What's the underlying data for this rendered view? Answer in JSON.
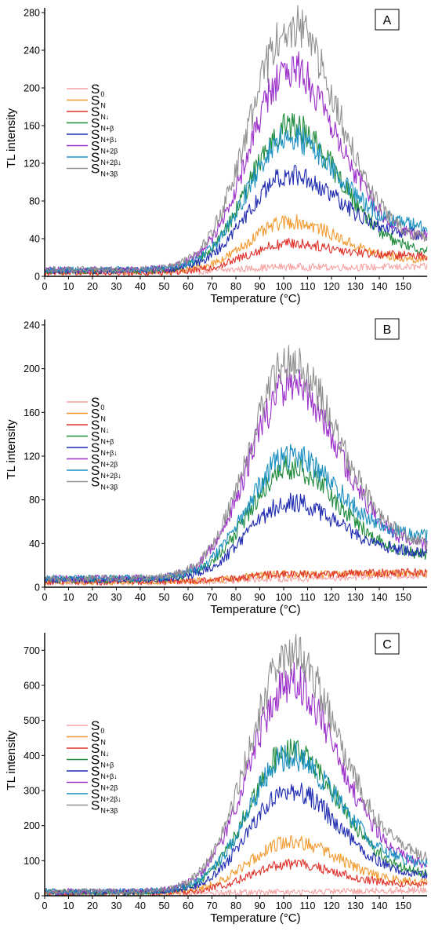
{
  "figure": {
    "series_colors": {
      "S0": "#f5a3a3",
      "SN": "#f29a2e",
      "SN↓": "#e0322b",
      "SN+β": "#1c8a3a",
      "SN+β↓": "#1f2bb0",
      "SN+2β": "#9b2fc9",
      "SN+2β↓": "#1a8fc0",
      "SN+3β": "#8f8f8f"
    }
  },
  "chart_data": [
    {
      "type": "line",
      "panel_label": "A",
      "xlabel": "Temperature (°C)",
      "ylabel": "TL intensity",
      "xlim": [
        0,
        160
      ],
      "ylim": [
        0,
        285
      ],
      "xticks": [
        0,
        10,
        20,
        30,
        40,
        50,
        60,
        70,
        80,
        90,
        100,
        110,
        120,
        130,
        140,
        150
      ],
      "yticks": [
        0,
        40,
        80,
        120,
        160,
        200,
        240,
        280
      ],
      "legend_position": "left",
      "series": [
        {
          "name": "S",
          "sub": "0",
          "peak": 10,
          "base": 5,
          "tail": 5
        },
        {
          "name": "S",
          "sub": "N",
          "peak": 58,
          "base": 5,
          "tail": 12
        },
        {
          "name": "S",
          "sub": "N↓",
          "peak": 35,
          "base": 4,
          "tail": 18
        },
        {
          "name": "S",
          "sub": "N+β",
          "peak": 160,
          "base": 6,
          "tail": 20
        },
        {
          "name": "S",
          "sub": "N+β↓",
          "peak": 108,
          "base": 6,
          "tail": 38
        },
        {
          "name": "S",
          "sub": "N+2β",
          "peak": 220,
          "base": 7,
          "tail": 32
        },
        {
          "name": "S",
          "sub": "N+2β↓",
          "peak": 148,
          "base": 7,
          "tail": 45
        },
        {
          "name": "S",
          "sub": "N+3β",
          "peak": 265,
          "base": 7,
          "tail": 30
        }
      ]
    },
    {
      "type": "line",
      "panel_label": "B",
      "xlabel": "Temperature (°C)",
      "ylabel": "TL intensity",
      "xlim": [
        0,
        160
      ],
      "ylim": [
        0,
        245
      ],
      "xticks": [
        0,
        10,
        20,
        30,
        40,
        50,
        60,
        70,
        80,
        90,
        100,
        110,
        120,
        130,
        140,
        150
      ],
      "yticks": [
        0,
        40,
        80,
        120,
        160,
        200,
        240
      ],
      "legend_position": "left",
      "series": [
        {
          "name": "S",
          "sub": "0",
          "peak": 8,
          "base": 5,
          "tail": 6
        },
        {
          "name": "S",
          "sub": "N",
          "peak": 12,
          "base": 5,
          "tail": 8
        },
        {
          "name": "S",
          "sub": "N↓",
          "peak": 12,
          "base": 5,
          "tail": 9
        },
        {
          "name": "S",
          "sub": "N+β",
          "peak": 110,
          "base": 7,
          "tail": 22
        },
        {
          "name": "S",
          "sub": "N+β↓",
          "peak": 78,
          "base": 7,
          "tail": 25
        },
        {
          "name": "S",
          "sub": "N+2β",
          "peak": 185,
          "base": 8,
          "tail": 28
        },
        {
          "name": "S",
          "sub": "N+2β↓",
          "peak": 120,
          "base": 8,
          "tail": 38
        },
        {
          "name": "S",
          "sub": "N+3β",
          "peak": 205,
          "base": 8,
          "tail": 30
        }
      ]
    },
    {
      "type": "line",
      "panel_label": "C",
      "xlabel": "Temperature (°C)",
      "ylabel": "TL intensity",
      "xlim": [
        0,
        160
      ],
      "ylim": [
        0,
        750
      ],
      "xticks": [
        0,
        10,
        20,
        30,
        40,
        50,
        60,
        70,
        80,
        90,
        100,
        110,
        120,
        130,
        140,
        150
      ],
      "yticks": [
        0,
        100,
        200,
        300,
        400,
        500,
        600,
        700
      ],
      "legend_position": "left",
      "series": [
        {
          "name": "S",
          "sub": "0",
          "peak": 10,
          "base": 8,
          "tail": 8
        },
        {
          "name": "S",
          "sub": "N",
          "peak": 155,
          "base": 8,
          "tail": 28
        },
        {
          "name": "S",
          "sub": "N↓",
          "peak": 90,
          "base": 8,
          "tail": 22
        },
        {
          "name": "S",
          "sub": "N+β",
          "peak": 415,
          "base": 10,
          "tail": 50
        },
        {
          "name": "S",
          "sub": "N+β↓",
          "peak": 300,
          "base": 10,
          "tail": 45
        },
        {
          "name": "S",
          "sub": "N+2β",
          "peak": 610,
          "base": 12,
          "tail": 70
        },
        {
          "name": "S",
          "sub": "N+2β↓",
          "peak": 400,
          "base": 12,
          "tail": 75
        },
        {
          "name": "S",
          "sub": "N+3β",
          "peak": 690,
          "base": 12,
          "tail": 95
        }
      ]
    }
  ]
}
